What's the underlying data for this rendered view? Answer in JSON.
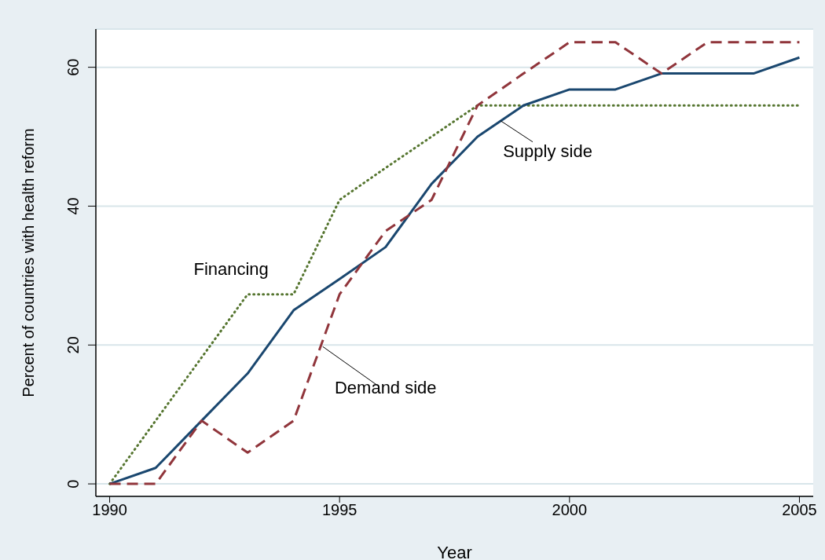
{
  "chart_data": {
    "type": "line",
    "xlabel": "Year",
    "ylabel": "Percent of countries with health reform",
    "x": [
      1990,
      1991,
      1992,
      1993,
      1994,
      1995,
      1996,
      1997,
      1998,
      1999,
      2000,
      2001,
      2002,
      2003,
      2004,
      2005
    ],
    "series": [
      {
        "color": "#55752f",
        "line_style": "dotted",
        "values": [
          0,
          9.1,
          18.2,
          27.3,
          27.3,
          40.9,
          45.5,
          50,
          54.5,
          54.5,
          54.5,
          54.5,
          54.5,
          54.5,
          54.5,
          54.5
        ]
      },
      {
        "color": "#1a476f",
        "line_style": "solid",
        "values": [
          0,
          2.3,
          9.1,
          15.9,
          25,
          29.5,
          34.1,
          43.2,
          50,
          54.5,
          56.8,
          56.8,
          59.1,
          59.1,
          59.1,
          61.4
        ]
      },
      {
        "color": "#90353b",
        "line_style": "dashed",
        "values": [
          0,
          0,
          9.1,
          4.5,
          9.1,
          27.3,
          36.4,
          40.9,
          54.5,
          59.1,
          63.6,
          63.6,
          59.1,
          63.6,
          63.6,
          63.6
        ]
      }
    ],
    "annotations": [
      {
        "text": "Financing",
        "x": 1993,
        "y": 27.3
      },
      {
        "text": "Supply side",
        "x": 1998.5,
        "y": 52.3
      },
      {
        "text": "Demand side",
        "x": 1994.6,
        "y": 20
      }
    ],
    "xlim": [
      1989.7,
      2005.3
    ],
    "xticks": [
      1990,
      1995,
      2000,
      2005
    ],
    "ylim": [
      -1.8,
      65.5
    ],
    "yticks": [
      0,
      20,
      40,
      60
    ],
    "grid": "y",
    "marker": "none",
    "legend": false
  }
}
